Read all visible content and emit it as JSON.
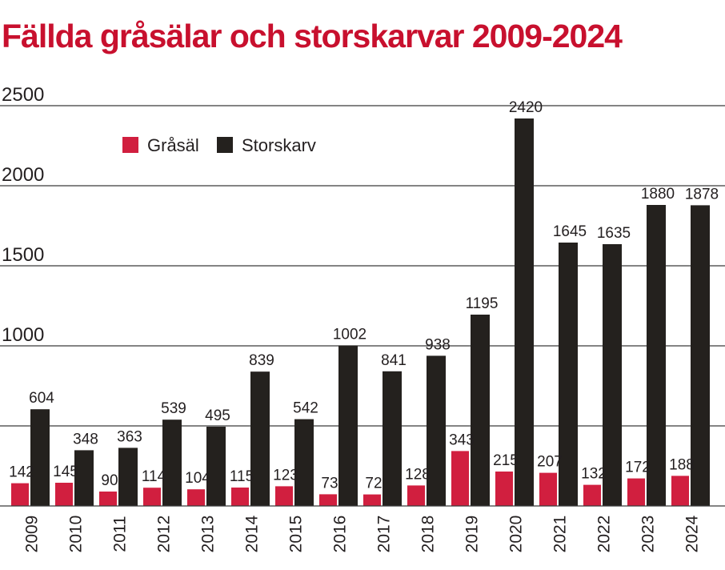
{
  "chart_data": {
    "type": "bar",
    "title": "Fällda gråsälar och storskarvar 2009-2024",
    "xlabel": "",
    "ylabel": "",
    "ylim": [
      0,
      2500
    ],
    "yticks": [
      "2500",
      "2000",
      "1500",
      "1000"
    ],
    "grid": true,
    "legend_position": "top-left",
    "categories": [
      "2009",
      "2010",
      "2011",
      "2012",
      "2013",
      "2014",
      "2015",
      "2016",
      "2017",
      "2018",
      "2019",
      "2020",
      "2021",
      "2022",
      "2023",
      "2024"
    ],
    "series": [
      {
        "name": "Gråsäl",
        "color": "#d11f3f",
        "values": [
          142,
          145,
          90,
          114,
          104,
          115,
          123,
          73,
          72,
          128,
          343,
          215,
          207,
          132,
          172,
          188
        ]
      },
      {
        "name": "Storskarv",
        "color": "#24211e",
        "values": [
          604,
          348,
          363,
          539,
          495,
          839,
          542,
          1002,
          841,
          938,
          1195,
          2420,
          1645,
          1635,
          1880,
          1878
        ]
      }
    ]
  }
}
